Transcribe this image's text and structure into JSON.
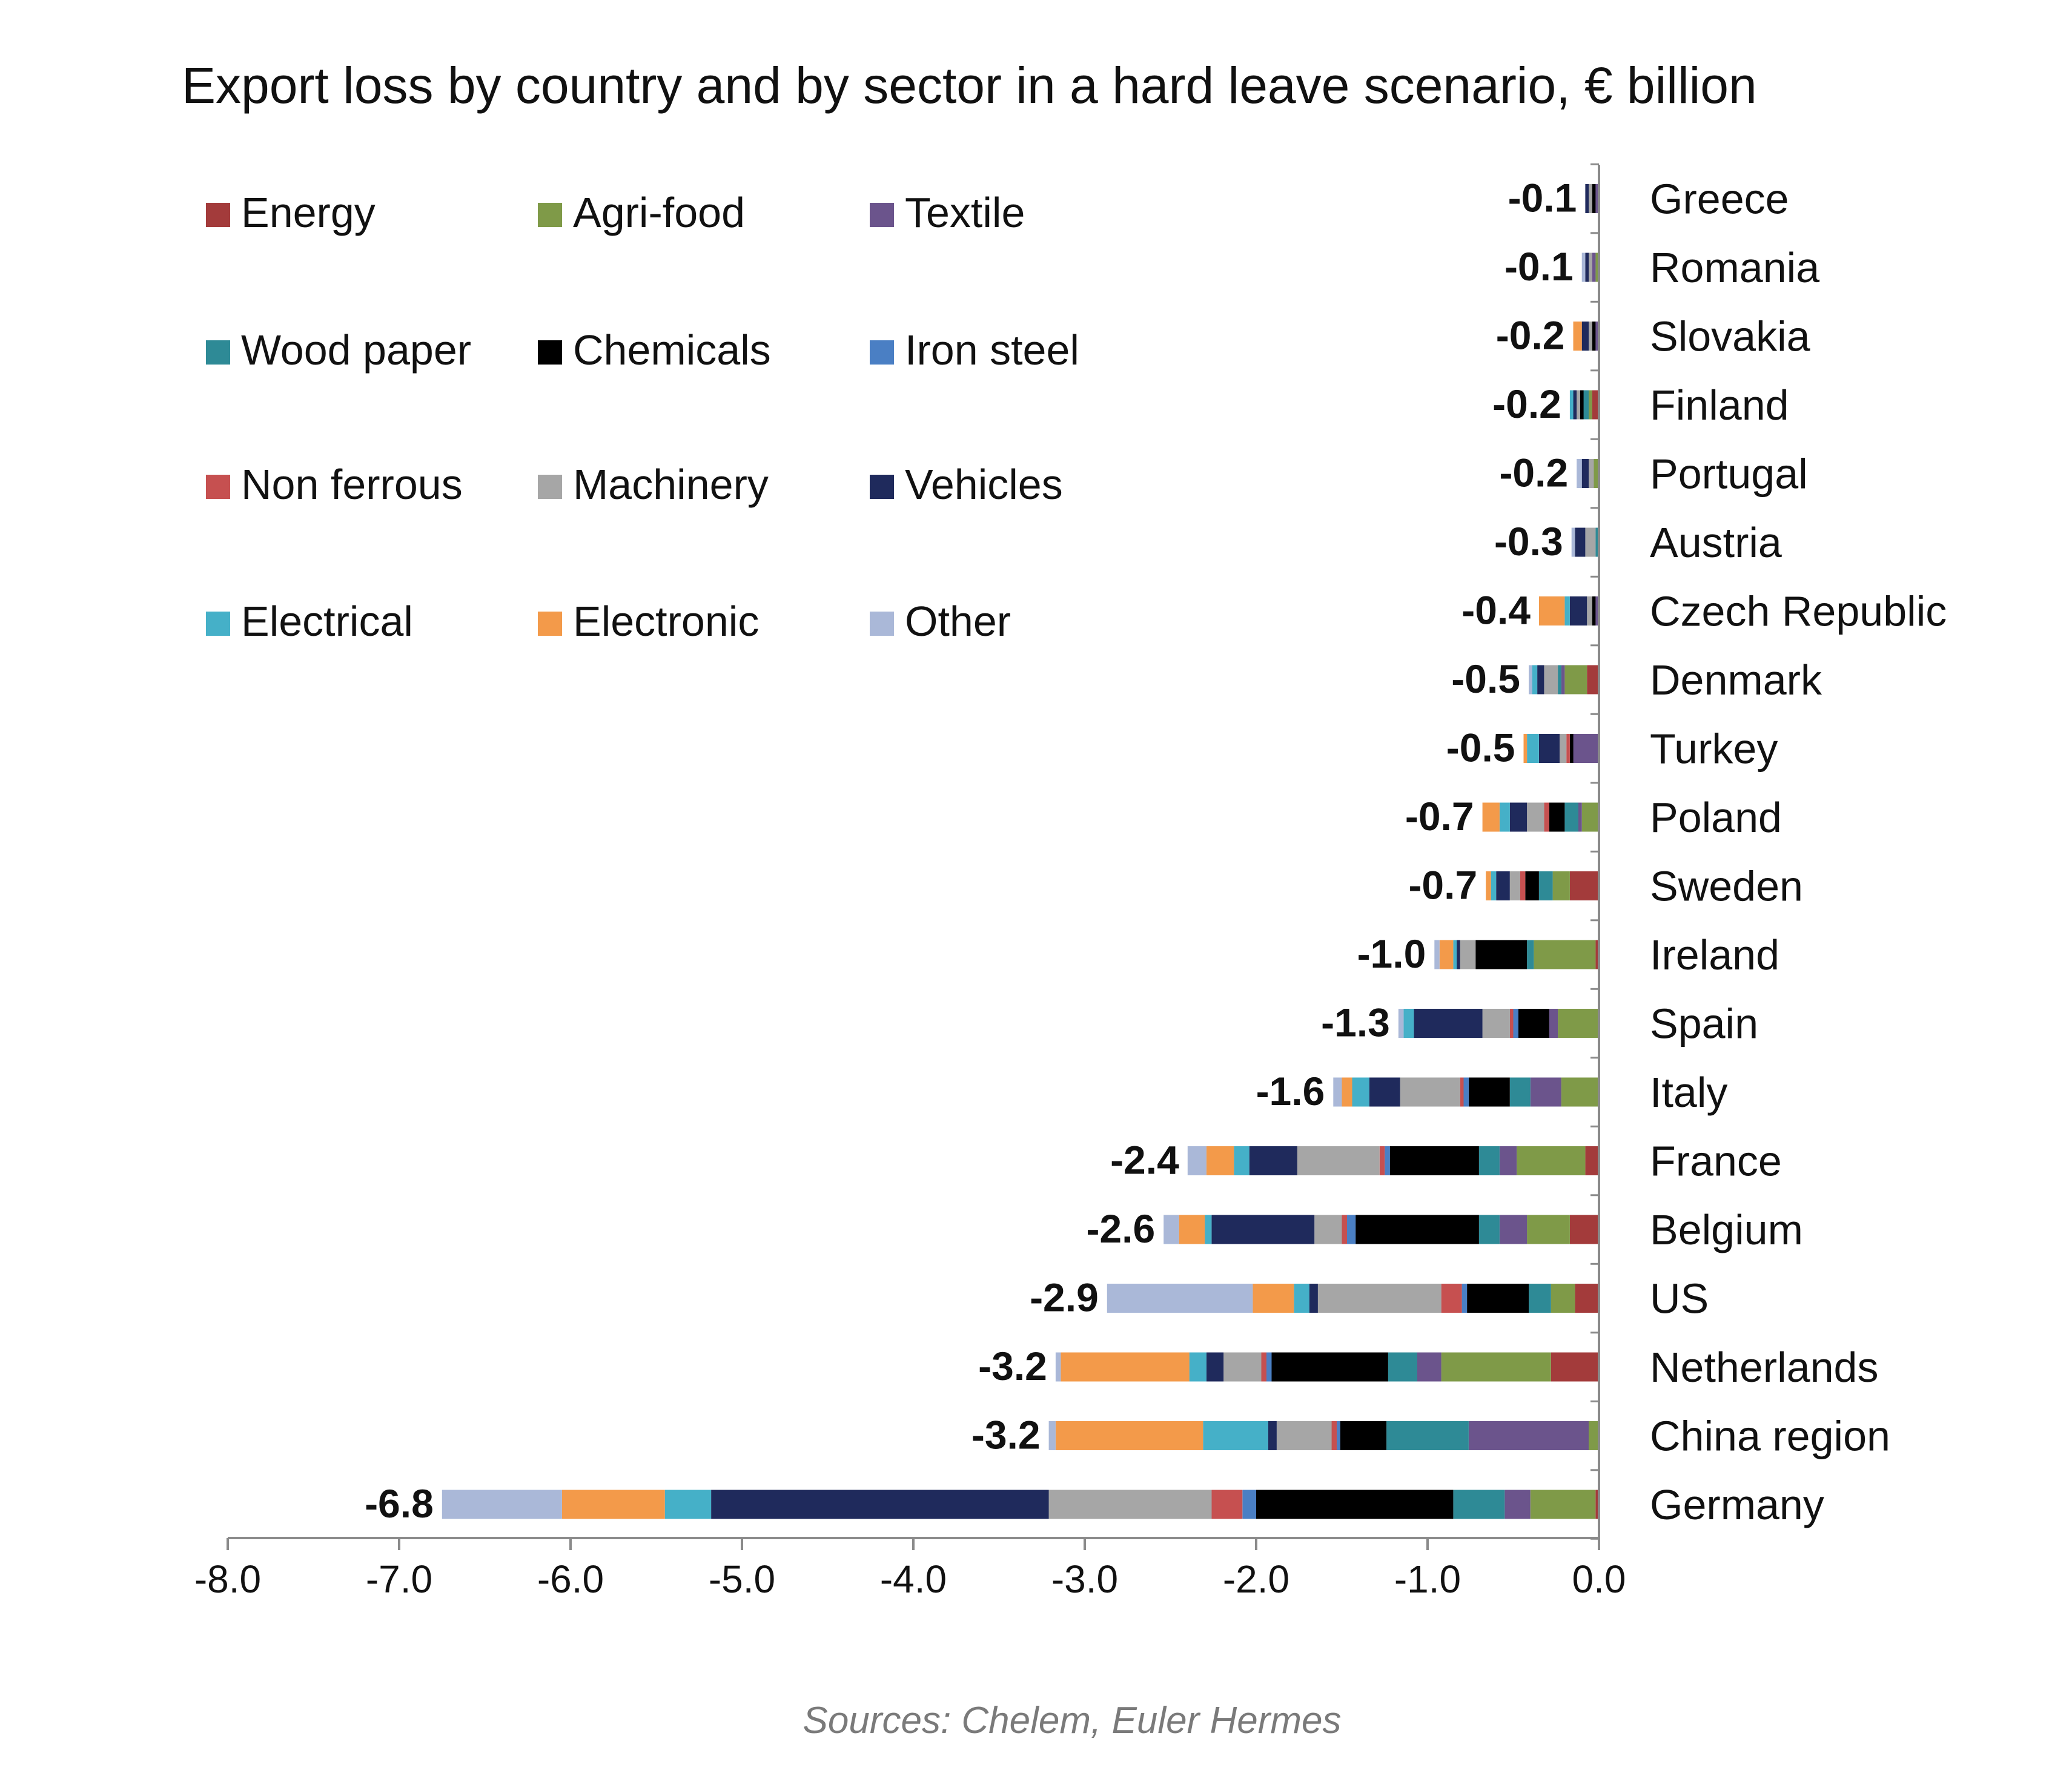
{
  "chart_data": {
    "type": "bar",
    "orientation": "horizontal",
    "stacked": true,
    "title": "Export loss by country and by sector in a hard leave scenario, € billion",
    "source": "Sources: Chelem, Euler Hermes",
    "xlim": [
      -8.0,
      0.0
    ],
    "xticks": [
      -8.0,
      -7.0,
      -6.0,
      -5.0,
      -4.0,
      -3.0,
      -2.0,
      -1.0,
      0.0
    ],
    "xtick_labels": [
      "-8.0",
      "-7.0",
      "-6.0",
      "-5.0",
      "-4.0",
      "-3.0",
      "-2.0",
      "-1.0",
      "0.0"
    ],
    "grid": false,
    "legend_position": "top-left",
    "categories": [
      "Greece",
      "Romania",
      "Slovakia",
      "Finland",
      "Portugal",
      "Austria",
      "Czech Republic",
      "Denmark",
      "Turkey",
      "Poland",
      "Sweden",
      "Ireland",
      "Spain",
      "Italy",
      "France",
      "Belgium",
      "US",
      "Netherlands",
      "China region",
      "Germany"
    ],
    "totals": [
      -0.1,
      -0.1,
      -0.2,
      -0.2,
      -0.2,
      -0.3,
      -0.4,
      -0.5,
      -0.5,
      -0.7,
      -0.7,
      -1.0,
      -1.3,
      -1.6,
      -2.4,
      -2.6,
      -2.9,
      -3.2,
      -3.2,
      -6.8
    ],
    "total_labels": [
      "-0.1",
      "-0.1",
      "-0.2",
      "-0.2",
      "-0.2",
      "-0.3",
      "-0.4",
      "-0.5",
      "-0.5",
      "-0.7",
      "-0.7",
      "-1.0",
      "-1.3",
      "-1.6",
      "-2.4",
      "-2.6",
      "-2.9",
      "-3.2",
      "-3.2",
      "-6.8"
    ],
    "series": [
      {
        "name": "Energy",
        "color": "#a33b3b",
        "values": [
          0,
          0,
          0,
          -0.04,
          0,
          0,
          0,
          -0.07,
          0,
          0,
          -0.17,
          -0.02,
          0,
          0,
          -0.08,
          -0.17,
          -0.14,
          -0.28,
          0,
          -0.02
        ]
      },
      {
        "name": "Agri-food",
        "color": "#7f9a48",
        "values": [
          0,
          -0.02,
          0,
          -0.02,
          -0.03,
          0,
          0,
          -0.13,
          0,
          -0.1,
          -0.1,
          -0.36,
          -0.24,
          -0.22,
          -0.4,
          -0.25,
          -0.14,
          -0.64,
          -0.06,
          -0.38
        ]
      },
      {
        "name": "Textile",
        "color": "#6b548c",
        "values": [
          -0.02,
          -0.02,
          -0.02,
          0,
          0,
          0,
          -0.02,
          -0.02,
          -0.15,
          -0.02,
          0,
          0,
          -0.05,
          -0.18,
          -0.1,
          -0.16,
          0,
          -0.14,
          -0.7,
          -0.15
        ]
      },
      {
        "name": "Wood paper",
        "color": "#2e8a96",
        "values": [
          0,
          0,
          0,
          -0.03,
          0,
          -0.02,
          0,
          -0.02,
          0,
          -0.08,
          -0.08,
          -0.04,
          0,
          -0.12,
          -0.12,
          -0.12,
          -0.13,
          -0.17,
          -0.48,
          -0.3
        ]
      },
      {
        "name": "Chemicals",
        "color": "#000000",
        "values": [
          -0.02,
          0,
          -0.02,
          -0.02,
          0,
          0,
          -0.02,
          0,
          -0.02,
          -0.09,
          -0.08,
          -0.3,
          -0.18,
          -0.24,
          -0.52,
          -0.72,
          -0.36,
          -0.68,
          -0.27,
          -1.15
        ]
      },
      {
        "name": "Iron steel",
        "color": "#4a7fc4",
        "values": [
          0,
          0,
          0,
          0,
          0,
          0,
          0,
          0,
          0,
          0,
          0,
          0,
          -0.03,
          -0.03,
          -0.03,
          -0.05,
          -0.03,
          -0.03,
          -0.02,
          -0.08
        ]
      },
      {
        "name": "Non ferrous",
        "color": "#c65050",
        "values": [
          0,
          0,
          0,
          0,
          0,
          0,
          0,
          0,
          -0.02,
          -0.03,
          -0.03,
          0,
          -0.02,
          -0.02,
          -0.03,
          -0.03,
          -0.12,
          -0.03,
          -0.03,
          -0.18
        ]
      },
      {
        "name": "Machinery",
        "color": "#a6a6a6",
        "values": [
          -0.02,
          -0.02,
          -0.02,
          -0.02,
          -0.03,
          -0.06,
          -0.03,
          -0.08,
          -0.04,
          -0.1,
          -0.06,
          -0.09,
          -0.16,
          -0.35,
          -0.48,
          -0.16,
          -0.72,
          -0.22,
          -0.32,
          -0.95
        ]
      },
      {
        "name": "Vehicles",
        "color": "#1f2a5c",
        "values": [
          -0.02,
          -0.02,
          -0.04,
          -0.02,
          -0.04,
          -0.06,
          -0.1,
          -0.04,
          -0.12,
          -0.1,
          -0.08,
          -0.02,
          -0.4,
          -0.18,
          -0.28,
          -0.6,
          -0.05,
          -0.1,
          -0.05,
          -1.97
        ]
      },
      {
        "name": "Electrical",
        "color": "#45b0c8",
        "values": [
          0,
          0,
          0,
          -0.02,
          0,
          0,
          -0.03,
          -0.03,
          -0.07,
          -0.06,
          -0.03,
          -0.02,
          -0.06,
          -0.1,
          -0.09,
          -0.04,
          -0.09,
          -0.1,
          -0.38,
          -0.27
        ]
      },
      {
        "name": "Electronic",
        "color": "#f39a4a",
        "values": [
          0,
          0,
          -0.05,
          0,
          0,
          0,
          -0.15,
          0,
          -0.02,
          -0.1,
          -0.03,
          -0.08,
          0,
          -0.06,
          -0.16,
          -0.15,
          -0.24,
          -0.75,
          -0.86,
          -0.6
        ]
      },
      {
        "name": "Other",
        "color": "#aab8d8",
        "values": [
          0,
          -0.02,
          0,
          0,
          -0.03,
          -0.02,
          0,
          -0.02,
          0,
          0,
          0,
          -0.03,
          -0.03,
          -0.05,
          -0.11,
          -0.09,
          -0.85,
          -0.03,
          -0.04,
          -0.7
        ]
      }
    ]
  }
}
